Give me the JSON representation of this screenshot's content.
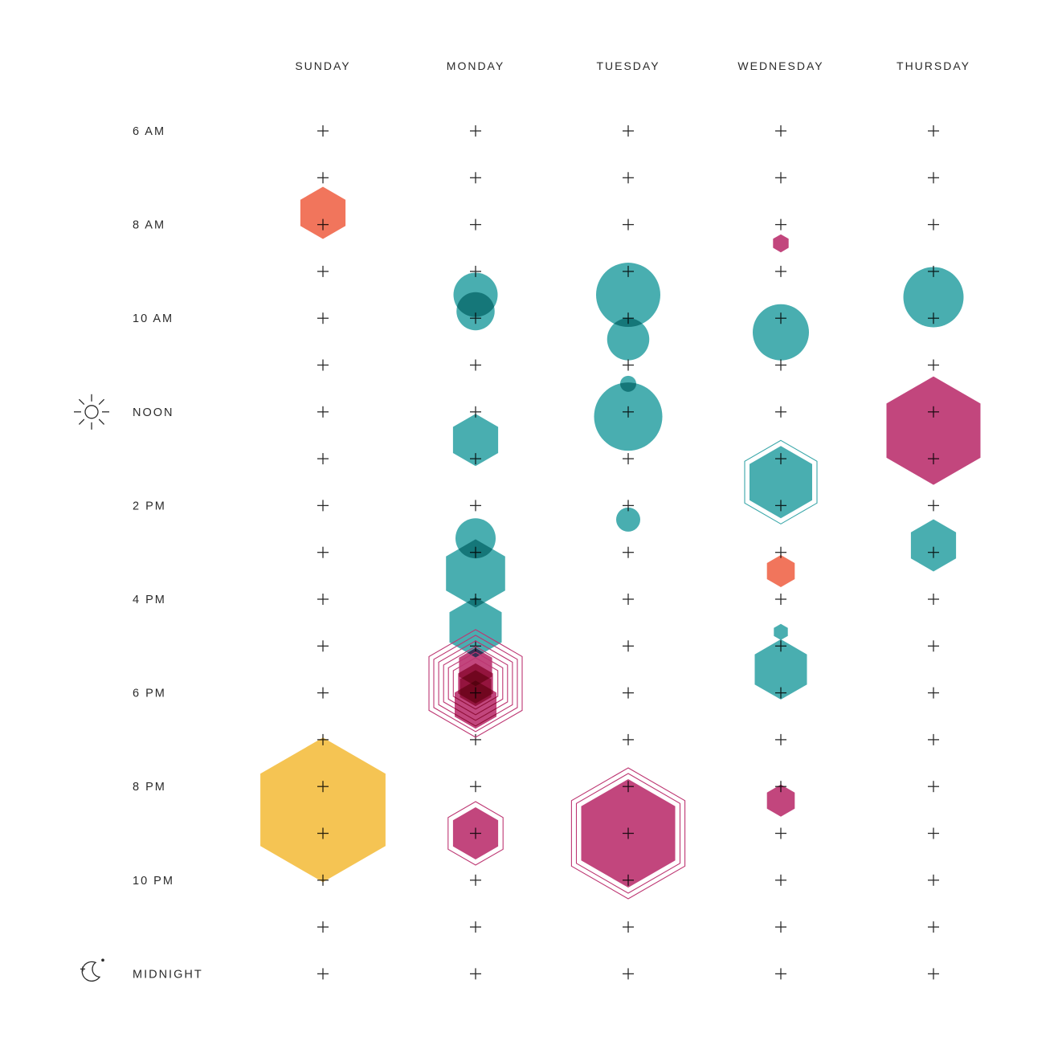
{
  "chart_data": {
    "type": "scatter",
    "title": "",
    "days": [
      "SUNDAY",
      "MONDAY",
      "TUESDAY",
      "WEDNESDAY",
      "THURSDAY"
    ],
    "grid_hours": [
      6,
      7,
      8,
      9,
      10,
      11,
      12,
      13,
      14,
      15,
      16,
      17,
      18,
      19,
      20,
      21,
      22,
      23,
      24
    ],
    "time_labels": [
      {
        "hour": 6,
        "label": "6 AM"
      },
      {
        "hour": 8,
        "label": "8 AM"
      },
      {
        "hour": 10,
        "label": "10 AM"
      },
      {
        "hour": 12,
        "label": "NOON",
        "icon": "sun-icon"
      },
      {
        "hour": 14,
        "label": "2 PM"
      },
      {
        "hour": 16,
        "label": "4 PM"
      },
      {
        "hour": 18,
        "label": "6 PM"
      },
      {
        "hour": 20,
        "label": "8 PM"
      },
      {
        "hour": 22,
        "label": "10 PM"
      },
      {
        "hour": 24,
        "label": "MIDNIGHT",
        "icon": "moon-icon"
      }
    ],
    "colors": {
      "orange": "#f0694e",
      "teal": "#3aa7a9",
      "magenta": "#bd3672",
      "yellow": "#f4bf44",
      "dark_overlap": "#1a6f72",
      "grid": "#2b2b2b"
    },
    "marks": [
      {
        "day": 0,
        "hour": 7.75,
        "shape": "hexagon",
        "size": 1.3,
        "color": "orange"
      },
      {
        "day": 0,
        "hour": 20.5,
        "shape": "hexagon",
        "size": 3.6,
        "color": "yellow"
      },
      {
        "day": 1,
        "hour": 9.5,
        "shape": "circle",
        "size": 1.1,
        "color": "teal"
      },
      {
        "day": 1,
        "hour": 9.85,
        "shape": "circle",
        "size": 0.95,
        "color": "teal"
      },
      {
        "day": 1,
        "hour": 12.6,
        "shape": "hexagon",
        "size": 1.3,
        "color": "teal"
      },
      {
        "day": 1,
        "hour": 14.7,
        "shape": "circle",
        "size": 1.0,
        "color": "teal"
      },
      {
        "day": 1,
        "hour": 15.45,
        "shape": "hexagon",
        "size": 1.7,
        "color": "teal"
      },
      {
        "day": 1,
        "hour": 16.6,
        "shape": "hexagon",
        "size": 1.5,
        "color": "teal"
      },
      {
        "day": 1,
        "hour": 17.45,
        "shape": "hexagon",
        "size": 0.95,
        "color": "magenta"
      },
      {
        "day": 1,
        "hour": 17.8,
        "shape": "hexagon",
        "size": 1.0,
        "color": "magenta",
        "rings": 6
      },
      {
        "day": 1,
        "hour": 17.9,
        "shape": "hexagon",
        "size": 0.9,
        "color": "magenta"
      },
      {
        "day": 1,
        "hour": 18.25,
        "shape": "hexagon",
        "size": 1.2,
        "color": "magenta"
      },
      {
        "day": 1,
        "hour": 21.0,
        "shape": "hexagon",
        "size": 1.3,
        "color": "magenta",
        "rings": 1
      },
      {
        "day": 2,
        "hour": 9.5,
        "shape": "circle",
        "size": 1.6,
        "color": "teal"
      },
      {
        "day": 2,
        "hour": 10.45,
        "shape": "circle",
        "size": 1.05,
        "color": "teal"
      },
      {
        "day": 2,
        "hour": 11.4,
        "shape": "circle",
        "size": 0.4,
        "color": "teal"
      },
      {
        "day": 2,
        "hour": 12.1,
        "shape": "circle",
        "size": 1.7,
        "color": "teal"
      },
      {
        "day": 2,
        "hour": 14.3,
        "shape": "circle",
        "size": 0.6,
        "color": "teal"
      },
      {
        "day": 2,
        "hour": 21.0,
        "shape": "hexagon",
        "size": 2.7,
        "color": "magenta",
        "rings": 2
      },
      {
        "day": 3,
        "hour": 8.4,
        "shape": "hexagon",
        "size": 0.45,
        "color": "magenta"
      },
      {
        "day": 3,
        "hour": 10.3,
        "shape": "circle",
        "size": 1.4,
        "color": "teal"
      },
      {
        "day": 3,
        "hour": 13.5,
        "shape": "hexagon",
        "size": 1.8,
        "color": "teal",
        "rings": 1
      },
      {
        "day": 3,
        "hour": 15.4,
        "shape": "hexagon",
        "size": 0.8,
        "color": "orange"
      },
      {
        "day": 3,
        "hour": 16.7,
        "shape": "hexagon",
        "size": 0.4,
        "color": "teal"
      },
      {
        "day": 3,
        "hour": 17.5,
        "shape": "hexagon",
        "size": 1.5,
        "color": "teal"
      },
      {
        "day": 3,
        "hour": 20.3,
        "shape": "hexagon",
        "size": 0.8,
        "color": "magenta"
      },
      {
        "day": 4,
        "hour": 9.55,
        "shape": "circle",
        "size": 1.5,
        "color": "teal"
      },
      {
        "day": 4,
        "hour": 12.4,
        "shape": "hexagon",
        "size": 2.7,
        "color": "magenta"
      },
      {
        "day": 4,
        "hour": 14.85,
        "shape": "hexagon",
        "size": 1.3,
        "color": "teal"
      }
    ]
  }
}
